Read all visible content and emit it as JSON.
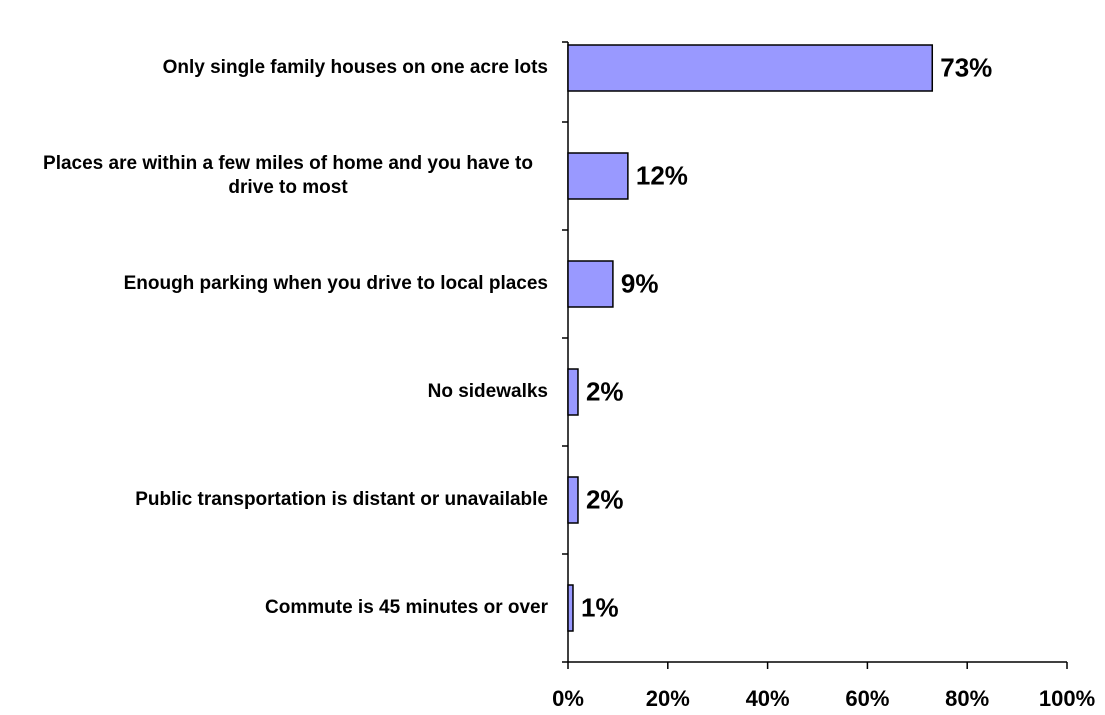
{
  "chart_data": {
    "type": "bar",
    "orientation": "horizontal",
    "categories": [
      "Only single family houses on one acre lots",
      "Places are within a few miles of home and you have to drive to most",
      "Enough parking when you drive to local places",
      "No sidewalks",
      "Public transportation is distant or unavailable",
      "Commute is 45 minutes or over"
    ],
    "values": [
      73,
      12,
      9,
      2,
      2,
      1
    ],
    "value_labels": [
      "73%",
      "12%",
      "9%",
      "2%",
      "2%",
      "1%"
    ],
    "color": "#9999ff",
    "xlim": [
      0,
      100
    ],
    "xticks": [
      {
        "value": 0,
        "label": "0%"
      },
      {
        "value": 20,
        "label": "20%"
      },
      {
        "value": 40,
        "label": "40%"
      },
      {
        "value": 60,
        "label": "60%"
      },
      {
        "value": 80,
        "label": "80%"
      },
      {
        "value": 100,
        "label": "100%"
      }
    ],
    "grid": false
  }
}
